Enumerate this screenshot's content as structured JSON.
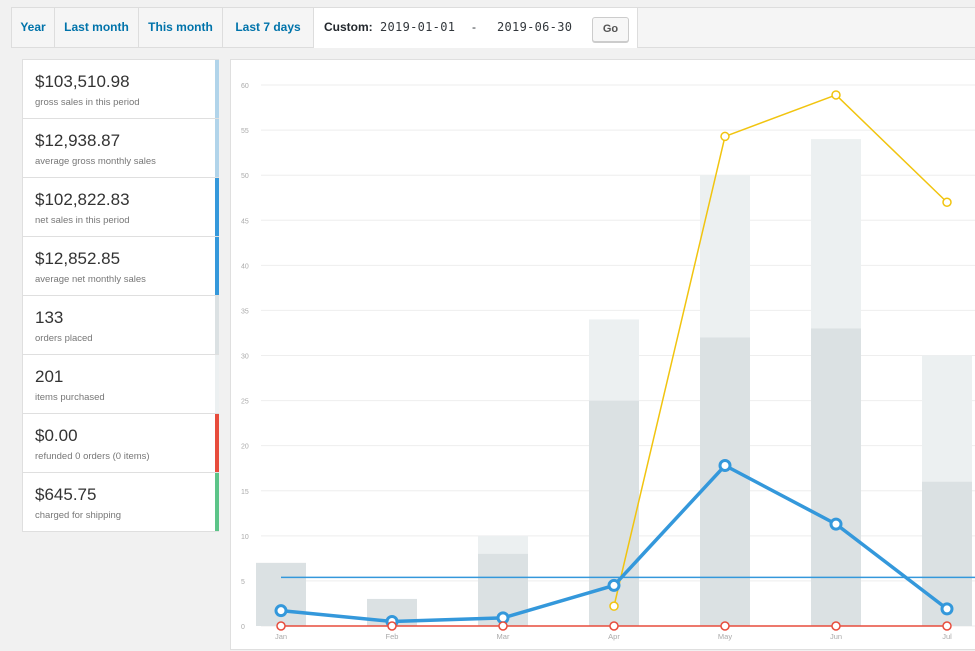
{
  "tabs": [
    {
      "label": "Year"
    },
    {
      "label": "Last month"
    },
    {
      "label": "This month"
    },
    {
      "label": "Last 7 days"
    }
  ],
  "custom_range": {
    "label": "Custom:",
    "start": "2019-01-01",
    "separator": "-",
    "end": "2019-06-30",
    "go_label": "Go"
  },
  "legend": [
    {
      "value": "$103,510.98",
      "desc": "gross sales in this period",
      "color": "#b1d4ea"
    },
    {
      "value": "$12,938.87",
      "desc": "average gross monthly sales",
      "color": "#b1d4ea"
    },
    {
      "value": "$102,822.83",
      "desc": "net sales in this period",
      "color": "#3498db"
    },
    {
      "value": "$12,852.85",
      "desc": "average net monthly sales",
      "color": "#3498db"
    },
    {
      "value": "133",
      "desc": "orders placed",
      "color": "#dbe1e3"
    },
    {
      "value": "201",
      "desc": "items purchased",
      "color": "#ecf0f1"
    },
    {
      "value": "$0.00",
      "desc": "refunded 0 orders (0 items)",
      "color": "#e74c3c"
    },
    {
      "value": "$645.75",
      "desc": "charged for shipping",
      "color": "#5cc488"
    }
  ],
  "chart_data": {
    "type": "bar",
    "categories": [
      "Jan",
      "Feb",
      "Mar",
      "Apr",
      "May",
      "Jun",
      "Jul"
    ],
    "y_ticks": [
      0,
      5,
      10,
      15,
      20,
      25,
      30,
      35,
      40,
      45,
      50,
      55,
      60
    ],
    "ylim": [
      0,
      62
    ],
    "grid": true,
    "series": [
      {
        "kind": "bar",
        "values": [
          7,
          3,
          10,
          34,
          50,
          54,
          30
        ],
        "color": "#ecf0f1"
      },
      {
        "kind": "bar",
        "values": [
          7,
          3,
          8,
          25,
          32,
          33,
          16
        ],
        "color": "#dbe1e3"
      },
      {
        "kind": "line",
        "values": [
          null,
          null,
          null,
          2.2,
          54.3,
          58.9,
          47
        ],
        "color": "#f1c40f"
      },
      {
        "kind": "line",
        "values": [
          1.7,
          0.5,
          0.9,
          4.5,
          17.8,
          11.3,
          1.9
        ],
        "color": "#3498db"
      },
      {
        "kind": "line",
        "values": [
          0,
          0,
          0,
          0,
          0,
          0,
          0
        ],
        "color": "#e74c3c"
      }
    ],
    "average_line": {
      "value": 5.4,
      "color": "#3498db"
    }
  }
}
